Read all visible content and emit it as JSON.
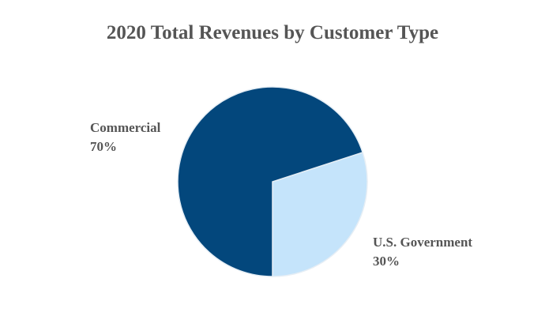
{
  "chart_data": {
    "type": "pie",
    "title": "2020 Total Revenues by Customer Type",
    "slices": [
      {
        "label": "U.S. Government",
        "value": 30,
        "display": "30%",
        "color": "#c5e4fb"
      },
      {
        "label": "Commercial",
        "value": 70,
        "display": "70%",
        "color": "#03477c"
      }
    ],
    "start_angle_deg": 72,
    "direction": "clockwise",
    "legend": "none"
  }
}
